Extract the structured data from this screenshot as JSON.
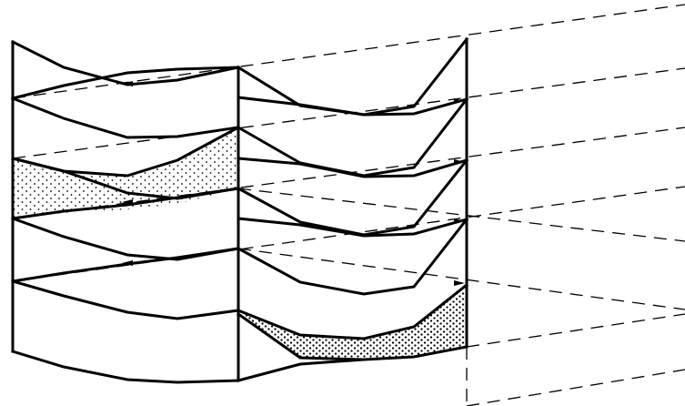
{
  "figure": {
    "colors": {
      "ink": "#000000",
      "paper": "#ffffff"
    },
    "fill_pattern": "stipple-dots",
    "columns": 2,
    "chevron_rows": 6,
    "dashed_lines": 8,
    "shaded_regions": [
      {
        "name": "upper-left-stippled-band",
        "column": 1
      },
      {
        "name": "lower-right-stippled-band",
        "column": 2
      }
    ]
  }
}
